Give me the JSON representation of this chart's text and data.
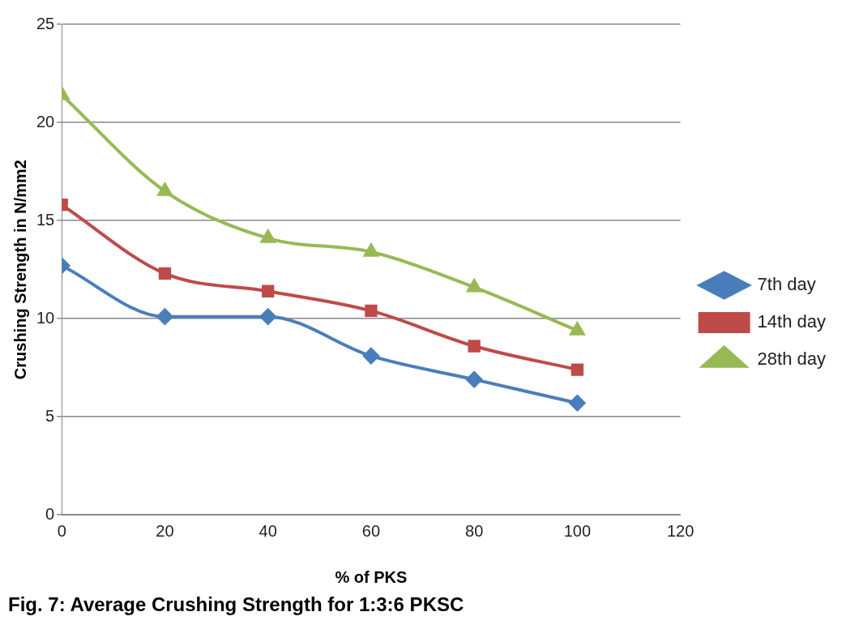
{
  "chart_data": {
    "type": "line",
    "title": "Fig. 7: Average Crushing Strength for 1:3:6 PKSC",
    "xlabel": "% of PKS",
    "ylabel": "Crushing Strength in N/mm2",
    "x": [
      0,
      20,
      40,
      60,
      80,
      100
    ],
    "xlim": [
      0,
      120
    ],
    "xticks": [
      0,
      20,
      40,
      60,
      80,
      100,
      120
    ],
    "ylim": [
      0,
      25
    ],
    "yticks": [
      0,
      5,
      10,
      15,
      20,
      25
    ],
    "grid": "y",
    "legend": "right",
    "series": [
      {
        "name": "7th day",
        "color": "#4a7ebb",
        "marker": "diamond",
        "values": [
          12.7,
          10.1,
          10.1,
          8.1,
          6.9,
          5.7
        ]
      },
      {
        "name": "14th day",
        "color": "#be4b48",
        "marker": "square",
        "values": [
          15.8,
          12.3,
          11.4,
          10.4,
          8.6,
          7.4
        ]
      },
      {
        "name": "28th day",
        "color": "#98b954",
        "marker": "triangle",
        "values": [
          21.4,
          16.5,
          14.1,
          13.4,
          11.6,
          9.4
        ]
      }
    ]
  }
}
